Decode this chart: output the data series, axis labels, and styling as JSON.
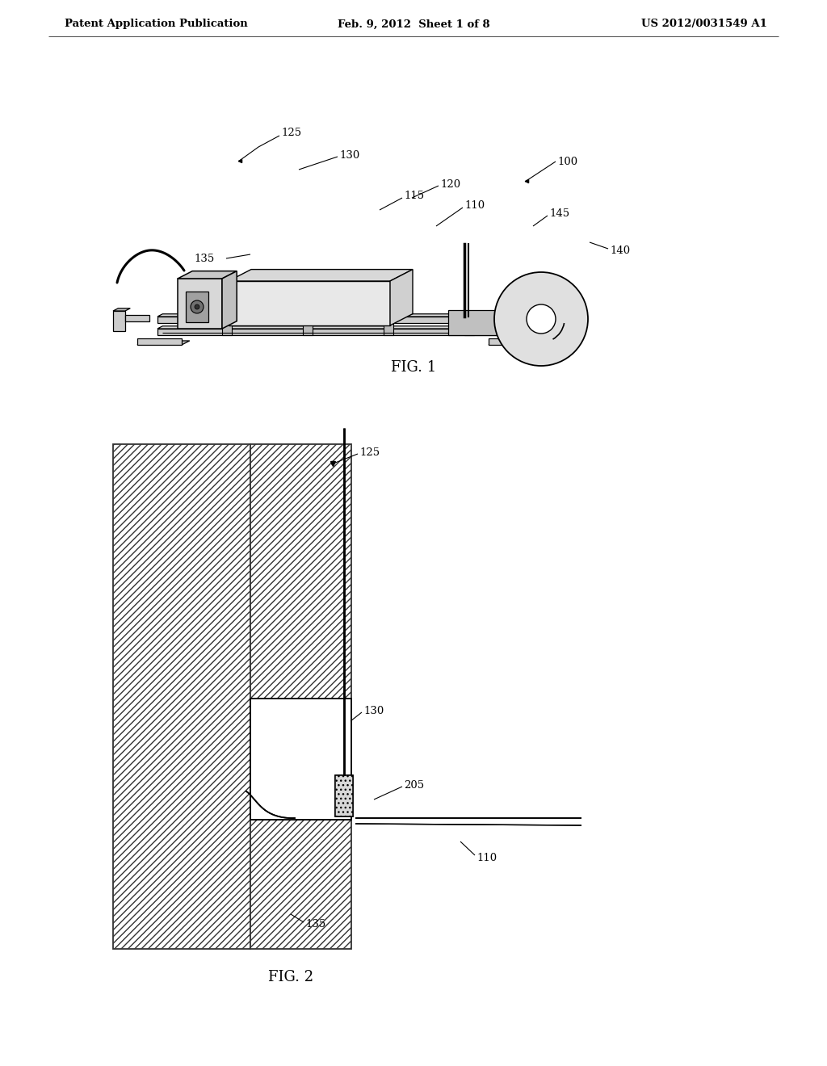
{
  "header_left": "Patent Application Publication",
  "header_mid": "Feb. 9, 2012  Sheet 1 of 8",
  "header_right": "US 2012/0031549 A1",
  "fig1_caption": "FIG. 1",
  "fig2_caption": "FIG. 2",
  "bg_color": "#ffffff"
}
